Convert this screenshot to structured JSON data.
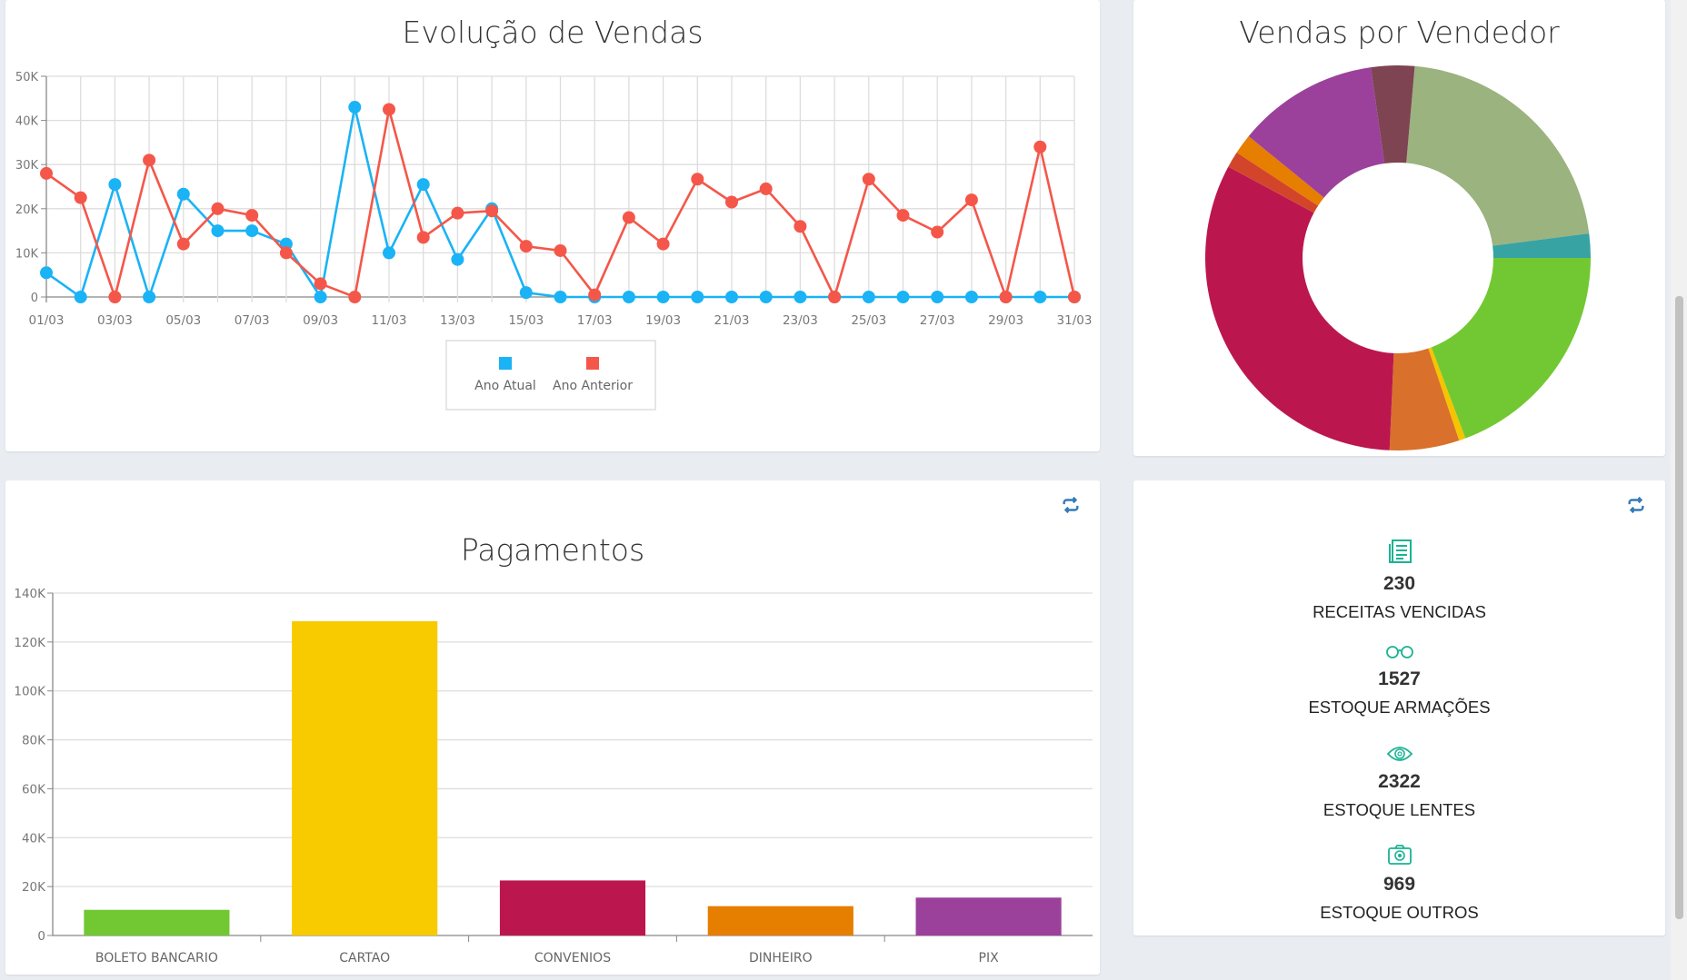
{
  "chart_data": [
    {
      "type": "line",
      "title": "Evolução de Vendas",
      "ylim": [
        0,
        50000
      ],
      "yticks": [
        "0",
        "10K",
        "20K",
        "30K",
        "40K",
        "50K"
      ],
      "x": [
        "01/03",
        "02/03",
        "03/03",
        "04/03",
        "05/03",
        "06/03",
        "07/03",
        "08/03",
        "09/03",
        "10/03",
        "11/03",
        "12/03",
        "13/03",
        "14/03",
        "15/03",
        "16/03",
        "17/03",
        "18/03",
        "19/03",
        "20/03",
        "21/03",
        "22/03",
        "23/03",
        "24/03",
        "25/03",
        "26/03",
        "27/03",
        "28/03",
        "29/03",
        "30/03",
        "31/03"
      ],
      "xtick_labels": [
        "01/03",
        "03/03",
        "05/03",
        "07/03",
        "09/03",
        "11/03",
        "13/03",
        "15/03",
        "17/03",
        "19/03",
        "21/03",
        "23/03",
        "25/03",
        "27/03",
        "29/03",
        "31/03"
      ],
      "legend": "bottom",
      "series": [
        {
          "name": "Ano Atual",
          "color": "#1ab3f5",
          "values": [
            5500,
            0,
            25500,
            0,
            23300,
            15000,
            15000,
            12000,
            0,
            43000,
            10000,
            25500,
            8500,
            20000,
            1000,
            0,
            0,
            0,
            0,
            0,
            0,
            0,
            0,
            0,
            0,
            0,
            0,
            0,
            0,
            0,
            0
          ]
        },
        {
          "name": "Ano Anterior",
          "color": "#f4574a",
          "values": [
            28000,
            22500,
            0,
            31000,
            12000,
            20000,
            18500,
            10000,
            3000,
            0,
            42500,
            13500,
            19000,
            19500,
            11500,
            10500,
            500,
            18000,
            12000,
            26700,
            21500,
            24500,
            16000,
            0,
            26700,
            18500,
            14700,
            22000,
            0,
            34000,
            0
          ]
        }
      ]
    },
    {
      "type": "pie",
      "title": "Vendas por Vendedor",
      "donut": true,
      "start_angle_deg": 5,
      "values": [
        77.7,
        7.3,
        69.5,
        2,
        21,
        115.8,
        4.9,
        6,
        42.7,
        13.1
      ],
      "colors": [
        "#9bb37f",
        "#37a3a3",
        "#72c832",
        "#f5c400",
        "#d9702b",
        "#bc164e",
        "#d3452b",
        "#e67e00",
        "#9b419b",
        "#7e4451"
      ]
    },
    {
      "type": "bar",
      "title": "Pagamentos",
      "ylim": [
        0,
        140000
      ],
      "yticks": [
        "0",
        "20K",
        "40K",
        "60K",
        "80K",
        "100K",
        "120K",
        "140K"
      ],
      "categories": [
        "BOLETO BANCARIO",
        "CARTAO",
        "CONVENIOS",
        "DINHEIRO",
        "PIX"
      ],
      "values": [
        10500,
        128500,
        22500,
        12000,
        15500
      ],
      "colors": [
        "#72c832",
        "#f7cb00",
        "#bc164e",
        "#e67e00",
        "#9b419b"
      ]
    }
  ],
  "stats": [
    {
      "icon": "prescription-icon",
      "value": "230",
      "label": "RECEITAS VENCIDAS"
    },
    {
      "icon": "glasses-icon",
      "value": "1527",
      "label": "ESTOQUE ARMAÇÕES"
    },
    {
      "icon": "eye-icon",
      "value": "2322",
      "label": "ESTOQUE LENTES"
    },
    {
      "icon": "camera-icon",
      "value": "969",
      "label": "ESTOQUE OUTROS"
    }
  ],
  "colors": {
    "accent": "#1ab394",
    "refresh": "#337ab7"
  }
}
